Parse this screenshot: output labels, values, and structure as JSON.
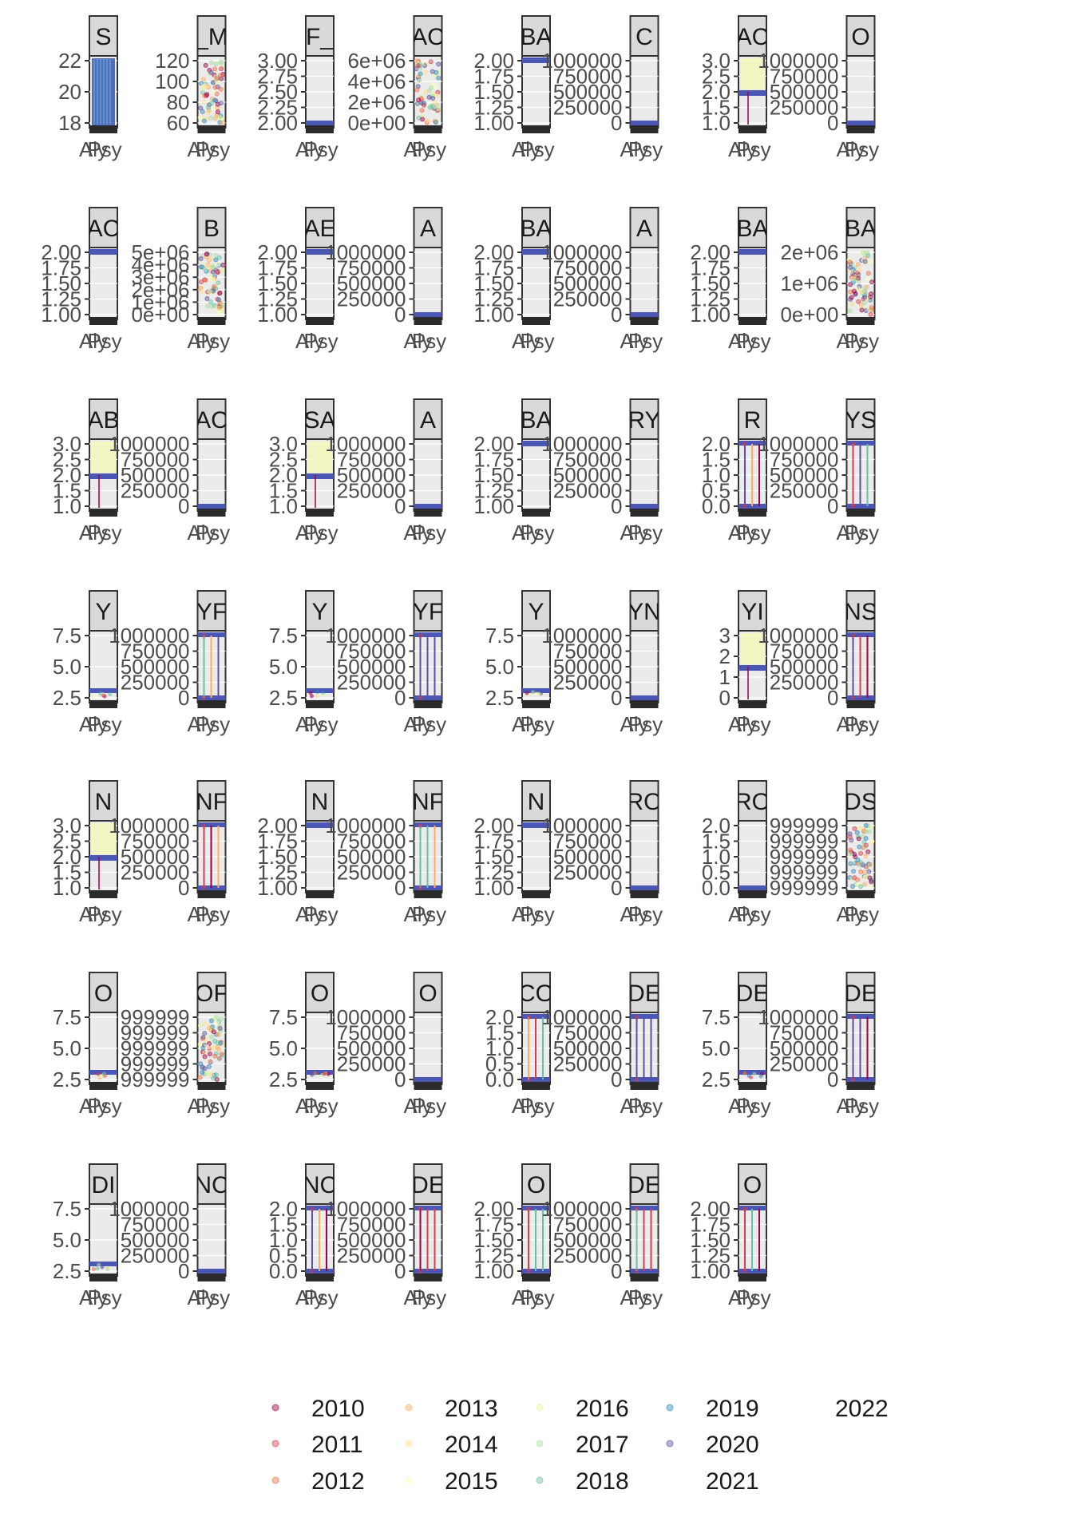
{
  "chart_data": {
    "type": "scatter",
    "facet_layout": {
      "rows": 7,
      "cols": 8
    },
    "x_tick_labels": [
      "Aly",
      "Psy"
    ],
    "legend": {
      "position": "bottom",
      "entries": [
        "2010",
        "2011",
        "2012",
        "2013",
        "2014",
        "2015",
        "2016",
        "2017",
        "2018",
        "2019",
        "2020",
        "2021",
        "2022"
      ],
      "colors": [
        "#9e0142",
        "#d53e4f",
        "#f46d43",
        "#fdae61",
        "#fee08b",
        "#ffffbf",
        "#e6f598",
        "#abdda4",
        "#66c2a5",
        "#3288bd",
        "#5e4fa2",
        "#ffffff",
        "#ffffff"
      ]
    },
    "panels": [
      {
        "strip": "S",
        "yticks": [
          "18",
          "20",
          "22"
        ],
        "ylim": [
          16.5,
          23.5
        ],
        "pattern": "full"
      },
      {
        "strip": "_M",
        "yticks": [
          "60",
          "80",
          "100",
          "120"
        ],
        "ylim": [
          52,
          124
        ],
        "pattern": "scatter"
      },
      {
        "strip": "F_",
        "yticks": [
          "2.00",
          "2.25",
          "2.50",
          "2.75",
          "3.00"
        ],
        "ylim": [
          1.95,
          3.05
        ],
        "pattern": "bottom"
      },
      {
        "strip": "AC",
        "yticks": [
          "0e+00",
          "2e+06",
          "4e+06",
          "6e+06"
        ],
        "ylim": [
          -300000,
          7000000
        ],
        "pattern": "scatter"
      },
      {
        "strip": "BA",
        "yticks": [
          "1.00",
          "1.25",
          "1.50",
          "1.75",
          "2.00"
        ],
        "ylim": [
          1.0,
          2.0
        ],
        "pattern": "top"
      },
      {
        "strip": "C",
        "yticks": [
          "0",
          "250000",
          "500000",
          "750000",
          "1000000"
        ],
        "ylim": [
          0,
          1000000
        ],
        "pattern": "bottom"
      },
      {
        "strip": "AC",
        "yticks": [
          "1.0",
          "1.5",
          "2.0",
          "2.5",
          "3.0"
        ],
        "ylim": [
          1.0,
          3.0
        ],
        "pattern": "middle"
      },
      {
        "strip": "O",
        "yticks": [
          "0",
          "250000",
          "500000",
          "750000",
          "1000000"
        ],
        "ylim": [
          0,
          1000000
        ],
        "pattern": "bottom"
      },
      {
        "strip": "AC",
        "yticks": [
          "1.00",
          "1.25",
          "1.50",
          "1.75",
          "2.00"
        ],
        "ylim": [
          1.0,
          2.0
        ],
        "pattern": "top"
      },
      {
        "strip": "B",
        "yticks": [
          "0e+00",
          "1e+06",
          "2e+06",
          "3e+06",
          "4e+06",
          "5e+06"
        ],
        "ylim": [
          0,
          5200000
        ],
        "pattern": "scatter"
      },
      {
        "strip": "AE",
        "yticks": [
          "1.00",
          "1.25",
          "1.50",
          "1.75",
          "2.00"
        ],
        "ylim": [
          1.0,
          2.0
        ],
        "pattern": "top"
      },
      {
        "strip": "A",
        "yticks": [
          "0",
          "250000",
          "500000",
          "750000",
          "1000000"
        ],
        "ylim": [
          0,
          1000000
        ],
        "pattern": "bottom"
      },
      {
        "strip": "BA",
        "yticks": [
          "1.00",
          "1.25",
          "1.50",
          "1.75",
          "2.00"
        ],
        "ylim": [
          1.0,
          2.0
        ],
        "pattern": "top"
      },
      {
        "strip": "A",
        "yticks": [
          "0",
          "250000",
          "500000",
          "750000",
          "1000000"
        ],
        "ylim": [
          0,
          1000000
        ],
        "pattern": "bottom"
      },
      {
        "strip": "BA",
        "yticks": [
          "1.00",
          "1.25",
          "1.50",
          "1.75",
          "2.00"
        ],
        "ylim": [
          1.0,
          2.0
        ],
        "pattern": "top"
      },
      {
        "strip": "BA",
        "yticks": [
          "0e+00",
          "1e+06",
          "2e+06"
        ],
        "ylim": [
          -50000,
          2800000
        ],
        "pattern": "scatter"
      },
      {
        "strip": "AB",
        "yticks": [
          "1.0",
          "1.5",
          "2.0",
          "2.5",
          "3.0"
        ],
        "ylim": [
          1.0,
          3.0
        ],
        "pattern": "middle"
      },
      {
        "strip": "AC",
        "yticks": [
          "0",
          "250000",
          "500000",
          "750000",
          "1000000"
        ],
        "ylim": [
          0,
          1000000
        ],
        "pattern": "bottom"
      },
      {
        "strip": "SA",
        "yticks": [
          "1.0",
          "1.5",
          "2.0",
          "2.5",
          "3.0"
        ],
        "ylim": [
          1.0,
          3.0
        ],
        "pattern": "middle"
      },
      {
        "strip": "A",
        "yticks": [
          "0",
          "250000",
          "500000",
          "750000",
          "1000000"
        ],
        "ylim": [
          0,
          1000000
        ],
        "pattern": "bottom"
      },
      {
        "strip": "BA",
        "yticks": [
          "1.00",
          "1.25",
          "1.50",
          "1.75",
          "2.00"
        ],
        "ylim": [
          1.0,
          2.0
        ],
        "pattern": "top"
      },
      {
        "strip": "RY",
        "yticks": [
          "0",
          "250000",
          "500000",
          "750000",
          "1000000"
        ],
        "ylim": [
          0,
          1000000
        ],
        "pattern": "bottom"
      },
      {
        "strip": "R",
        "yticks": [
          "0.0",
          "0.5",
          "1.0",
          "1.5",
          "2.0"
        ],
        "ylim": [
          0,
          2.0
        ],
        "pattern": "bars"
      },
      {
        "strip": "YS",
        "yticks": [
          "0",
          "250000",
          "500000",
          "750000",
          "1000000"
        ],
        "ylim": [
          0,
          1000000
        ],
        "pattern": "bars"
      },
      {
        "strip": "Y",
        "yticks": [
          "2.5",
          "5.0",
          "7.5"
        ],
        "ylim": [
          0.8,
          10
        ],
        "pattern": "low"
      },
      {
        "strip": "YF",
        "yticks": [
          "0",
          "250000",
          "500000",
          "750000",
          "1000000"
        ],
        "ylim": [
          0,
          1000000
        ],
        "pattern": "bars"
      },
      {
        "strip": "Y",
        "yticks": [
          "2.5",
          "5.0",
          "7.5"
        ],
        "ylim": [
          0.8,
          10
        ],
        "pattern": "low"
      },
      {
        "strip": "YF",
        "yticks": [
          "0",
          "250000",
          "500000",
          "750000",
          "1000000"
        ],
        "ylim": [
          0,
          1000000
        ],
        "pattern": "bars"
      },
      {
        "strip": "Y",
        "yticks": [
          "2.5",
          "5.0",
          "7.5"
        ],
        "ylim": [
          0.8,
          10
        ],
        "pattern": "low"
      },
      {
        "strip": "YN",
        "yticks": [
          "0",
          "250000",
          "500000",
          "750000",
          "1000000"
        ],
        "ylim": [
          0,
          1000000
        ],
        "pattern": "bottom"
      },
      {
        "strip": "YI",
        "yticks": [
          "0",
          "1",
          "2",
          "3"
        ],
        "ylim": [
          0,
          3.2
        ],
        "pattern": "middle"
      },
      {
        "strip": "NS",
        "yticks": [
          "0",
          "250000",
          "500000",
          "750000",
          "1000000"
        ],
        "ylim": [
          0,
          1000000
        ],
        "pattern": "bars"
      },
      {
        "strip": "N",
        "yticks": [
          "1.0",
          "1.5",
          "2.0",
          "2.5",
          "3.0"
        ],
        "ylim": [
          1.0,
          3.0
        ],
        "pattern": "middle"
      },
      {
        "strip": "NF",
        "yticks": [
          "0",
          "250000",
          "500000",
          "750000",
          "1000000"
        ],
        "ylim": [
          0,
          1000000
        ],
        "pattern": "bars"
      },
      {
        "strip": "N",
        "yticks": [
          "1.00",
          "1.25",
          "1.50",
          "1.75",
          "2.00"
        ],
        "ylim": [
          1.0,
          2.0
        ],
        "pattern": "top"
      },
      {
        "strip": "NF",
        "yticks": [
          "0",
          "250000",
          "500000",
          "750000",
          "1000000"
        ],
        "ylim": [
          0,
          1000000
        ],
        "pattern": "bars"
      },
      {
        "strip": "N",
        "yticks": [
          "1.00",
          "1.25",
          "1.50",
          "1.75",
          "2.00"
        ],
        "ylim": [
          1.0,
          2.0
        ],
        "pattern": "top"
      },
      {
        "strip": "RO",
        "yticks": [
          "0",
          "250000",
          "500000",
          "750000",
          "1000000"
        ],
        "ylim": [
          0,
          1000000
        ],
        "pattern": "bottom"
      },
      {
        "strip": "RO",
        "yticks": [
          "0.0",
          "0.5",
          "1.0",
          "1.5",
          "2.0"
        ],
        "ylim": [
          0,
          2.0
        ],
        "pattern": "bottom"
      },
      {
        "strip": "DS",
        "yticks": [
          "999999",
          "999999",
          "999999",
          "999999",
          "999999"
        ],
        "ylim": [
          0,
          1
        ],
        "pattern": "scatter"
      },
      {
        "strip": "O",
        "yticks": [
          "2.5",
          "5.0",
          "7.5"
        ],
        "ylim": [
          0.8,
          10
        ],
        "pattern": "low"
      },
      {
        "strip": "OF",
        "yticks": [
          "999999",
          "999999",
          "999999",
          "999999",
          "999999"
        ],
        "ylim": [
          0,
          1
        ],
        "pattern": "scatter"
      },
      {
        "strip": "O",
        "yticks": [
          "2.5",
          "5.0",
          "7.5"
        ],
        "ylim": [
          0.8,
          10
        ],
        "pattern": "low"
      },
      {
        "strip": "O",
        "yticks": [
          "0",
          "250000",
          "500000",
          "750000",
          "1000000"
        ],
        "ylim": [
          0,
          1000000
        ],
        "pattern": "bottom"
      },
      {
        "strip": "CO",
        "yticks": [
          "0.0",
          "0.5",
          "1.0",
          "1.5",
          "2.0"
        ],
        "ylim": [
          0,
          2.0
        ],
        "pattern": "bars"
      },
      {
        "strip": "DE",
        "yticks": [
          "0",
          "250000",
          "500000",
          "750000",
          "1000000"
        ],
        "ylim": [
          0,
          1000000
        ],
        "pattern": "bars"
      },
      {
        "strip": "DE",
        "yticks": [
          "2.5",
          "5.0",
          "7.5"
        ],
        "ylim": [
          0.8,
          10
        ],
        "pattern": "low"
      },
      {
        "strip": "DE",
        "yticks": [
          "0",
          "250000",
          "500000",
          "750000",
          "1000000"
        ],
        "ylim": [
          0,
          1000000
        ],
        "pattern": "bars"
      },
      {
        "strip": "DI",
        "yticks": [
          "2.5",
          "5.0",
          "7.5"
        ],
        "ylim": [
          0.8,
          10
        ],
        "pattern": "low"
      },
      {
        "strip": "NC",
        "yticks": [
          "0",
          "250000",
          "500000",
          "750000",
          "1000000"
        ],
        "ylim": [
          0,
          1000000
        ],
        "pattern": "bottom"
      },
      {
        "strip": "NC",
        "yticks": [
          "0.0",
          "0.5",
          "1.0",
          "1.5",
          "2.0"
        ],
        "ylim": [
          0,
          2.0
        ],
        "pattern": "bars"
      },
      {
        "strip": "DE",
        "yticks": [
          "0",
          "250000",
          "500000",
          "750000",
          "1000000"
        ],
        "ylim": [
          0,
          1000000
        ],
        "pattern": "bars"
      },
      {
        "strip": "O",
        "yticks": [
          "1.00",
          "1.25",
          "1.50",
          "1.75",
          "2.00"
        ],
        "ylim": [
          1.0,
          2.0
        ],
        "pattern": "bars"
      },
      {
        "strip": "DE",
        "yticks": [
          "0",
          "250000",
          "500000",
          "750000",
          "1000000"
        ],
        "ylim": [
          0,
          1000000
        ],
        "pattern": "bars"
      },
      {
        "strip": "O",
        "yticks": [
          "1.00",
          "1.25",
          "1.50",
          "1.75",
          "2.00"
        ],
        "ylim": [
          1.0,
          2.0
        ],
        "pattern": "bars"
      }
    ]
  }
}
